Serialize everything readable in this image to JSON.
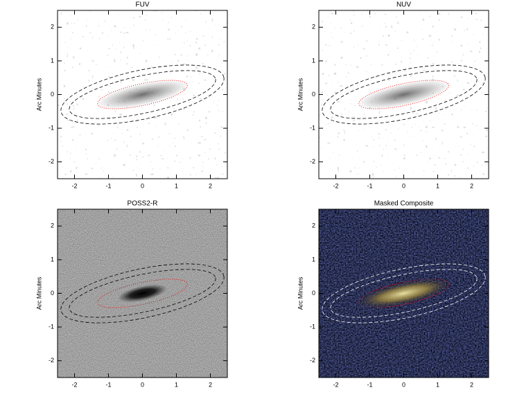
{
  "chart_data": [
    {
      "type": "image",
      "title": "FUV",
      "ylabel": "Arc Minutes",
      "style": "uv-light",
      "xlim": [
        -2.5,
        2.5
      ],
      "ylim": [
        -2.5,
        2.5
      ],
      "xticks": [
        -2,
        -1,
        0,
        1,
        2
      ],
      "yticks": [
        -2,
        -1,
        0,
        1,
        2
      ]
    },
    {
      "type": "image",
      "title": "NUV",
      "ylabel": "Arc Minutes",
      "style": "uv-light",
      "xlim": [
        -2.5,
        2.5
      ],
      "ylim": [
        -2.5,
        2.5
      ],
      "xticks": [
        -2,
        -1,
        0,
        1,
        2
      ],
      "yticks": [
        -2,
        -1,
        0,
        1,
        2
      ]
    },
    {
      "type": "image",
      "title": "POSS2-R",
      "ylabel": "Arc Minutes",
      "style": "optical",
      "xlim": [
        -2.5,
        2.5
      ],
      "ylim": [
        -2.5,
        2.5
      ],
      "xticks": [
        -2,
        -1,
        0,
        1,
        2
      ],
      "yticks": [
        -2,
        -1,
        0,
        1,
        2
      ]
    },
    {
      "type": "image",
      "title": "Masked Composite",
      "ylabel": "Arc Minutes",
      "style": "composite",
      "xlim": [
        -2.5,
        2.5
      ],
      "ylim": [
        -2.5,
        2.5
      ],
      "xticks": [
        -2,
        -1,
        0,
        1,
        2
      ],
      "yticks": [
        -2,
        -1,
        0,
        1,
        2
      ]
    }
  ]
}
